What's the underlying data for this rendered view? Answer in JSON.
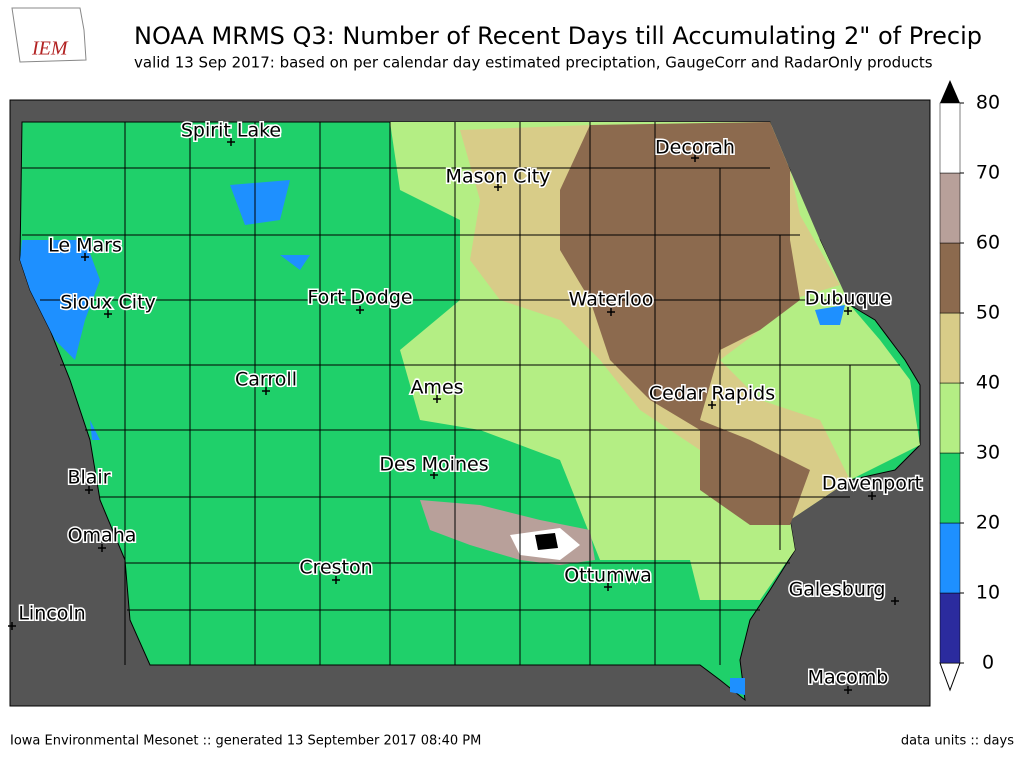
{
  "header": {
    "logo": "IEM",
    "title": "NOAA MRMS Q3: Number of Recent Days till Accumulating 2\" of Precip",
    "subtitle": "valid 13 Sep 2017: based on per calendar day estimated preciptation, GaugeCorr and RadarOnly products"
  },
  "cities": [
    "Spirit Lake",
    "Decorah",
    "Mason City",
    "Le Mars",
    "Sioux City",
    "Fort Dodge",
    "Waterloo",
    "Dubuque",
    "Carroll",
    "Ames",
    "Cedar Rapids",
    "Des Moines",
    "Blair",
    "Davenport",
    "Omaha",
    "Creston",
    "Ottumwa",
    "Galesburg",
    "Lincoln",
    "Macomb"
  ],
  "colorbar": {
    "ticks": [
      0,
      10,
      20,
      30,
      40,
      50,
      60,
      70,
      80
    ],
    "colors": [
      "#2b2b9e",
      "#1e90ff",
      "#1fd06a",
      "#b4ee84",
      "#d8cc88",
      "#8c6a4e",
      "#b8a09a",
      "#ffffff"
    ]
  },
  "footer": {
    "left": "Iowa Environmental Mesonet :: generated 13 September 2017 08:40 PM",
    "right": "data units :: days"
  }
}
